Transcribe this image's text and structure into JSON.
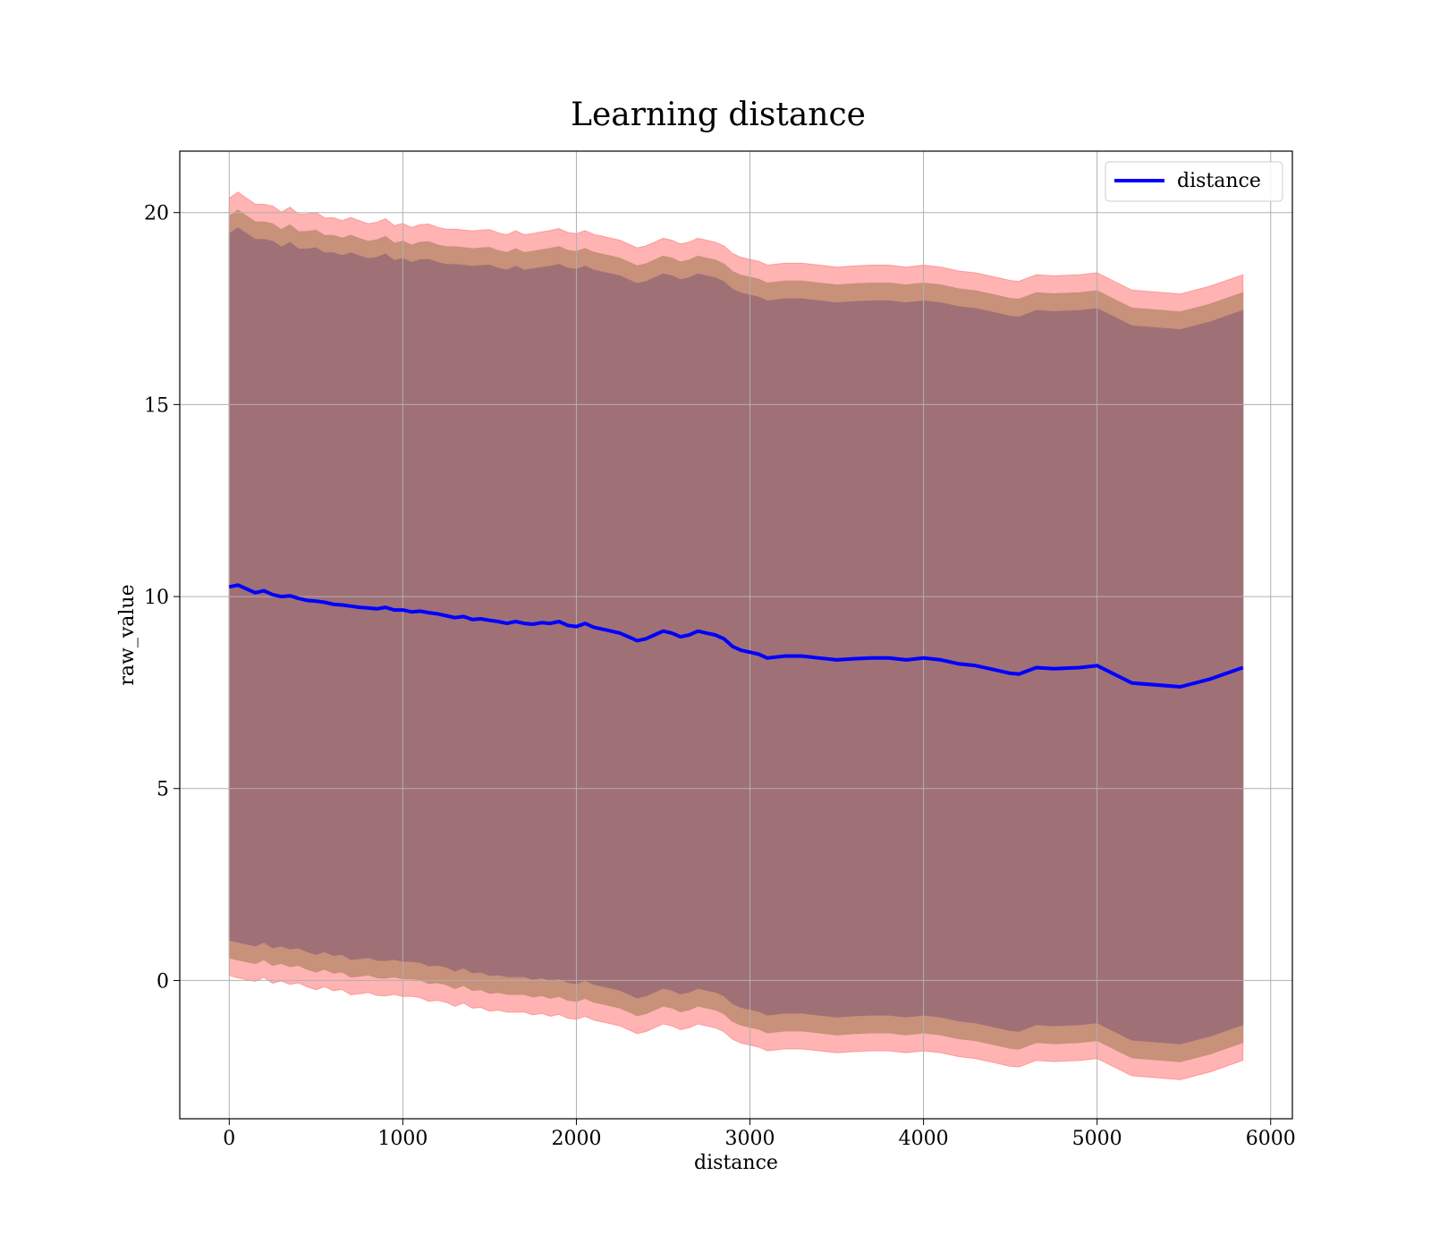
{
  "chart_data": {
    "type": "line",
    "title": "Learning distance",
    "xlabel": "distance",
    "ylabel": "raw_value",
    "xlim": [
      -285,
      6125
    ],
    "ylim": [
      -3.6,
      21.6
    ],
    "x_ticks": [
      0,
      1000,
      2000,
      3000,
      4000,
      5000,
      6000
    ],
    "y_ticks": [
      0,
      5,
      10,
      15,
      20
    ],
    "grid": true,
    "legend_position": "top-right",
    "colors": {
      "line": "#0000ff",
      "outer_band": "#ff9999",
      "middle_band": "#c8917a",
      "inner_band": "#a07077",
      "frame": "#000000",
      "grid": "#b0b0b0"
    },
    "series": [
      {
        "name": "distance",
        "x": [
          0,
          50,
          100,
          150,
          200,
          250,
          300,
          350,
          400,
          450,
          500,
          550,
          600,
          650,
          700,
          750,
          800,
          850,
          900,
          950,
          1000,
          1050,
          1100,
          1150,
          1200,
          1250,
          1300,
          1350,
          1400,
          1450,
          1500,
          1550,
          1600,
          1650,
          1700,
          1750,
          1800,
          1850,
          1900,
          1950,
          2000,
          2050,
          2100,
          2150,
          2200,
          2250,
          2300,
          2350,
          2400,
          2450,
          2500,
          2550,
          2600,
          2650,
          2700,
          2750,
          2800,
          2850,
          2900,
          2950,
          3000,
          3050,
          3100,
          3200,
          3300,
          3400,
          3500,
          3600,
          3700,
          3800,
          3900,
          4000,
          4100,
          4200,
          4300,
          4400,
          4500,
          4550,
          4650,
          4750,
          4900,
          5000,
          5200,
          5480,
          5650,
          5840
        ],
        "values": [
          10.25,
          10.3,
          10.2,
          10.1,
          10.15,
          10.05,
          10.0,
          10.02,
          9.95,
          9.9,
          9.88,
          9.85,
          9.8,
          9.78,
          9.75,
          9.72,
          9.7,
          9.68,
          9.72,
          9.65,
          9.65,
          9.6,
          9.62,
          9.58,
          9.55,
          9.5,
          9.45,
          9.48,
          9.4,
          9.42,
          9.38,
          9.35,
          9.3,
          9.35,
          9.3,
          9.28,
          9.32,
          9.3,
          9.35,
          9.25,
          9.22,
          9.3,
          9.2,
          9.15,
          9.1,
          9.05,
          8.95,
          8.85,
          8.9,
          9.0,
          9.1,
          9.05,
          8.95,
          9.0,
          9.1,
          9.05,
          9.0,
          8.9,
          8.7,
          8.6,
          8.55,
          8.5,
          8.4,
          8.45,
          8.45,
          8.4,
          8.35,
          8.38,
          8.4,
          8.4,
          8.35,
          8.4,
          8.35,
          8.25,
          8.2,
          8.1,
          8.0,
          7.98,
          8.15,
          8.12,
          8.15,
          8.2,
          7.75,
          7.65,
          7.85,
          8.15
        ],
        "std": [
          9.2,
          9.3,
          9.25,
          9.2,
          9.15,
          9.2,
          9.1,
          9.2,
          9.1,
          9.15,
          9.2,
          9.1,
          9.15,
          9.1,
          9.2,
          9.15,
          9.1,
          9.15,
          9.2,
          9.1,
          9.15,
          9.1,
          9.15,
          9.2,
          9.15,
          9.15,
          9.2,
          9.15,
          9.2,
          9.2,
          9.25,
          9.2,
          9.2,
          9.25,
          9.2,
          9.25,
          9.25,
          9.3,
          9.3,
          9.3,
          9.3,
          9.3,
          9.3,
          9.3,
          9.3,
          9.3,
          9.3,
          9.3,
          9.3,
          9.3,
          9.3,
          9.3,
          9.3,
          9.3,
          9.3,
          9.3,
          9.3,
          9.3,
          9.3,
          9.3,
          9.3,
          9.3,
          9.3,
          9.3,
          9.3,
          9.3,
          9.3,
          9.3,
          9.3,
          9.3,
          9.3,
          9.3,
          9.3,
          9.3,
          9.3,
          9.3,
          9.3,
          9.3,
          9.3,
          9.3,
          9.3,
          9.3,
          9.3,
          9.3,
          9.3,
          9.3
        ]
      }
    ]
  }
}
